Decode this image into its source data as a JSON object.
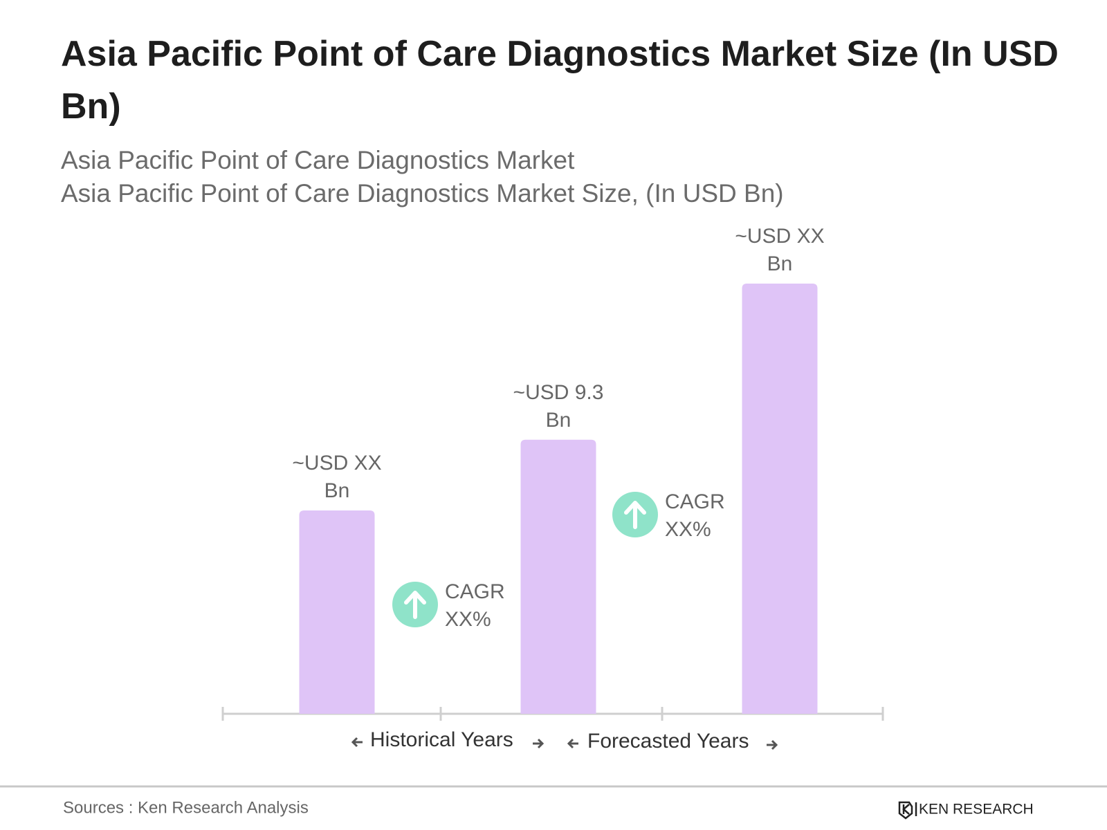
{
  "chart_data": {
    "type": "bar",
    "title": "Asia Pacific Point of Care Diagnostics Market Size (In USD Bn)",
    "subtitle": [
      "Asia Pacific Point of Care Diagnostics Market",
      "Asia Pacific Point of Care Diagnostics Market Size, (In USD Bn)"
    ],
    "categories": [
      null,
      null,
      null
    ],
    "values": [
      6.9,
      9.3,
      14.6
    ],
    "value_labels": [
      "~USD XX Bn",
      "~USD 9.3 Bn",
      "~USD XX Bn"
    ],
    "color": "#dfc4f7",
    "period_labels": [
      "Historical Years",
      "Forecasted Years"
    ],
    "annotations": [
      {
        "text": "CAGR XX%",
        "color": "#8fe3c9"
      },
      {
        "text": "CAGR XX%",
        "color": "#8fe3c9"
      }
    ]
  },
  "source": "Sources : Ken Research Analysis",
  "brand": "KEN RESEARCH"
}
